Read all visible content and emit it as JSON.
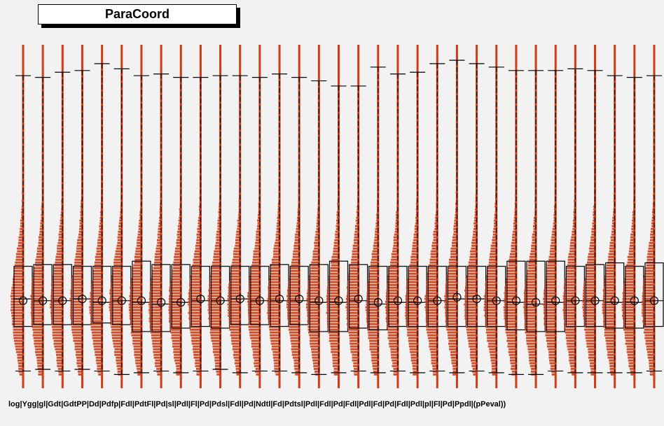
{
  "chart_data": {
    "type": "parallel-coordinates",
    "title": "ParaCoord",
    "axis_count": 33,
    "axis_labels_text": "log|Ygg|gl|Gdt|GdtPP|Dd|Pdfp|Fdl|PdtFl|Pd|sl|Pdl|Fl|Pd|Pdsl|Fdl|Pd|Ndtl|Fd|Pdtsl|Pdl|Fdl|Pd|Fdl|Pdl|Fd|Pd|Fdl|Pdl|pl|Fl|Pd|Ppdl|(pPeval))",
    "colors": {
      "axis": "#d23c14",
      "histogram": "#d23c14",
      "dash": "#1a1a1a",
      "box": "#000000",
      "background": "#f2f2f2"
    },
    "histogram_top_frac": 0.24,
    "axes": [
      {
        "upper_whisker": 0.91,
        "lower_whisker": 0.05,
        "q3": 0.355,
        "median": 0.26,
        "q1": 0.18,
        "mean": 0.255
      },
      {
        "upper_whisker": 0.905,
        "lower_whisker": 0.055,
        "q3": 0.36,
        "median": 0.255,
        "q1": 0.185,
        "mean": 0.255
      },
      {
        "upper_whisker": 0.92,
        "lower_whisker": 0.05,
        "q3": 0.36,
        "median": 0.255,
        "q1": 0.185,
        "mean": 0.255
      },
      {
        "upper_whisker": 0.925,
        "lower_whisker": 0.055,
        "q3": 0.355,
        "median": 0.26,
        "q1": 0.185,
        "mean": 0.26
      },
      {
        "upper_whisker": 0.945,
        "lower_whisker": 0.05,
        "q3": 0.355,
        "median": 0.25,
        "q1": 0.19,
        "mean": 0.255
      },
      {
        "upper_whisker": 0.93,
        "lower_whisker": 0.04,
        "q3": 0.355,
        "median": 0.255,
        "q1": 0.185,
        "mean": 0.255
      },
      {
        "upper_whisker": 0.91,
        "lower_whisker": 0.045,
        "q3": 0.37,
        "median": 0.25,
        "q1": 0.165,
        "mean": 0.255
      },
      {
        "upper_whisker": 0.915,
        "lower_whisker": 0.05,
        "q3": 0.36,
        "median": 0.245,
        "q1": 0.165,
        "mean": 0.25
      },
      {
        "upper_whisker": 0.905,
        "lower_whisker": 0.045,
        "q3": 0.36,
        "median": 0.25,
        "q1": 0.175,
        "mean": 0.25
      },
      {
        "upper_whisker": 0.905,
        "lower_whisker": 0.05,
        "q3": 0.355,
        "median": 0.255,
        "q1": 0.18,
        "mean": 0.26
      },
      {
        "upper_whisker": 0.91,
        "lower_whisker": 0.055,
        "q3": 0.355,
        "median": 0.255,
        "q1": 0.175,
        "mean": 0.255
      },
      {
        "upper_whisker": 0.91,
        "lower_whisker": 0.045,
        "q3": 0.355,
        "median": 0.26,
        "q1": 0.185,
        "mean": 0.26
      },
      {
        "upper_whisker": 0.905,
        "lower_whisker": 0.05,
        "q3": 0.355,
        "median": 0.255,
        "q1": 0.185,
        "mean": 0.255
      },
      {
        "upper_whisker": 0.915,
        "lower_whisker": 0.05,
        "q3": 0.36,
        "median": 0.255,
        "q1": 0.18,
        "mean": 0.26
      },
      {
        "upper_whisker": 0.905,
        "lower_whisker": 0.045,
        "q3": 0.355,
        "median": 0.255,
        "q1": 0.185,
        "mean": 0.26
      },
      {
        "upper_whisker": 0.895,
        "lower_whisker": 0.04,
        "q3": 0.36,
        "median": 0.25,
        "q1": 0.165,
        "mean": 0.255
      },
      {
        "upper_whisker": 0.88,
        "lower_whisker": 0.045,
        "q3": 0.37,
        "median": 0.25,
        "q1": 0.165,
        "mean": 0.255
      },
      {
        "upper_whisker": 0.88,
        "lower_whisker": 0.05,
        "q3": 0.36,
        "median": 0.255,
        "q1": 0.175,
        "mean": 0.26
      },
      {
        "upper_whisker": 0.935,
        "lower_whisker": 0.045,
        "q3": 0.355,
        "median": 0.245,
        "q1": 0.17,
        "mean": 0.25
      },
      {
        "upper_whisker": 0.915,
        "lower_whisker": 0.05,
        "q3": 0.355,
        "median": 0.25,
        "q1": 0.18,
        "mean": 0.255
      },
      {
        "upper_whisker": 0.92,
        "lower_whisker": 0.045,
        "q3": 0.355,
        "median": 0.25,
        "q1": 0.18,
        "mean": 0.255
      },
      {
        "upper_whisker": 0.945,
        "lower_whisker": 0.05,
        "q3": 0.355,
        "median": 0.255,
        "q1": 0.18,
        "mean": 0.255
      },
      {
        "upper_whisker": 0.955,
        "lower_whisker": 0.045,
        "q3": 0.355,
        "median": 0.26,
        "q1": 0.18,
        "mean": 0.265
      },
      {
        "upper_whisker": 0.945,
        "lower_whisker": 0.05,
        "q3": 0.355,
        "median": 0.26,
        "q1": 0.18,
        "mean": 0.26
      },
      {
        "upper_whisker": 0.935,
        "lower_whisker": 0.045,
        "q3": 0.355,
        "median": 0.255,
        "q1": 0.18,
        "mean": 0.255
      },
      {
        "upper_whisker": 0.925,
        "lower_whisker": 0.04,
        "q3": 0.37,
        "median": 0.25,
        "q1": 0.17,
        "mean": 0.255
      },
      {
        "upper_whisker": 0.925,
        "lower_whisker": 0.04,
        "q3": 0.37,
        "median": 0.245,
        "q1": 0.165,
        "mean": 0.25
      },
      {
        "upper_whisker": 0.925,
        "lower_whisker": 0.05,
        "q3": 0.37,
        "median": 0.25,
        "q1": 0.165,
        "mean": 0.255
      },
      {
        "upper_whisker": 0.93,
        "lower_whisker": 0.045,
        "q3": 0.355,
        "median": 0.255,
        "q1": 0.18,
        "mean": 0.255
      },
      {
        "upper_whisker": 0.925,
        "lower_whisker": 0.045,
        "q3": 0.36,
        "median": 0.255,
        "q1": 0.18,
        "mean": 0.255
      },
      {
        "upper_whisker": 0.91,
        "lower_whisker": 0.045,
        "q3": 0.365,
        "median": 0.25,
        "q1": 0.175,
        "mean": 0.255
      },
      {
        "upper_whisker": 0.905,
        "lower_whisker": 0.045,
        "q3": 0.355,
        "median": 0.25,
        "q1": 0.175,
        "mean": 0.255
      },
      {
        "upper_whisker": 0.91,
        "lower_whisker": 0.05,
        "q3": 0.365,
        "median": 0.255,
        "q1": 0.18,
        "mean": 0.255
      }
    ]
  }
}
